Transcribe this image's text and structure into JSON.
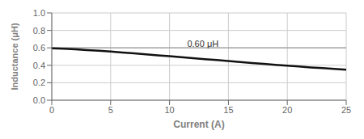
{
  "chart_data": {
    "type": "line",
    "xlabel": "Current (A)",
    "ylabel": "Inductance (μH)",
    "x": [
      0,
      1,
      2,
      3,
      4,
      5,
      6,
      7,
      8,
      9,
      10,
      11,
      12,
      13,
      14,
      15,
      16,
      17,
      18,
      19,
      20,
      21,
      22,
      23,
      24,
      25
    ],
    "values": [
      0.595,
      0.59,
      0.583,
      0.575,
      0.567,
      0.557,
      0.547,
      0.537,
      0.526,
      0.515,
      0.504,
      0.493,
      0.482,
      0.471,
      0.46,
      0.449,
      0.438,
      0.427,
      0.416,
      0.406,
      0.396,
      0.386,
      0.376,
      0.367,
      0.358,
      0.35
    ],
    "color": "#111111",
    "reference_line": {
      "y": 0.6,
      "color": "#999999"
    },
    "annotation": {
      "text": "0.60 μH",
      "x": 11.5,
      "y": 0.615
    },
    "xlim": [
      0,
      25
    ],
    "ylim": [
      0,
      1.0
    ],
    "xticks": [
      0,
      5,
      10,
      15,
      20,
      25
    ],
    "yticks": [
      {
        "value": 0,
        "label": "0.0"
      },
      0.2,
      0.4,
      0.6,
      0.8,
      {
        "value": 1.0,
        "label": "1.0"
      }
    ],
    "grid": true
  }
}
